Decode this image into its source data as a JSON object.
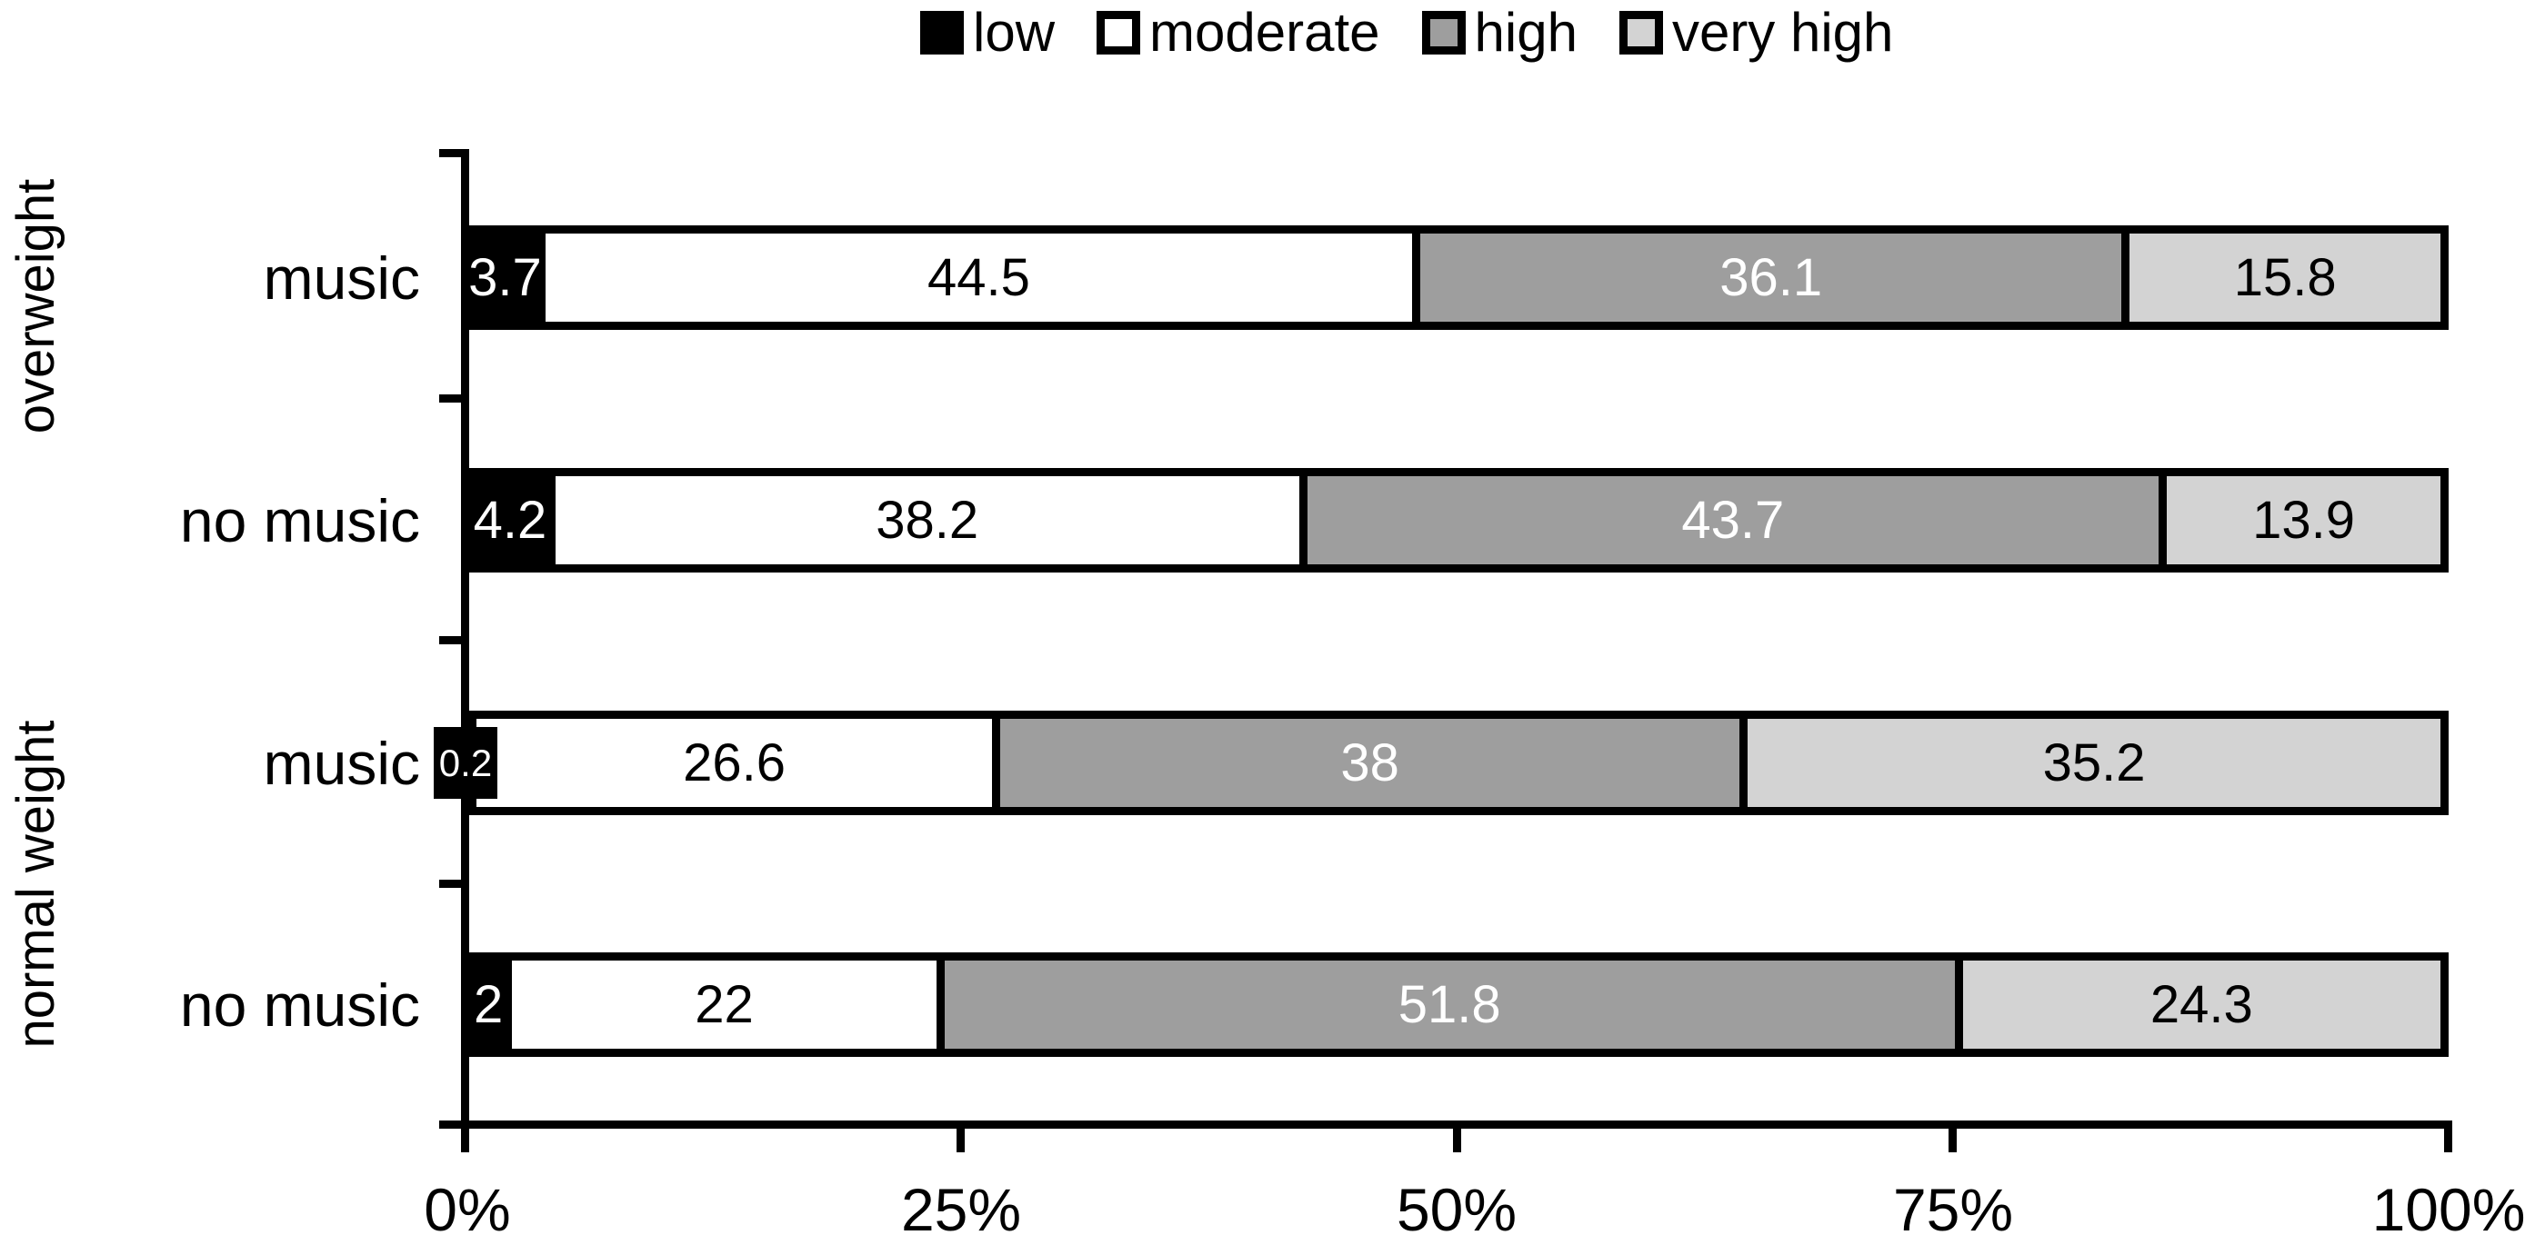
{
  "legend": {
    "items": [
      {
        "label": "low",
        "color": "#000000"
      },
      {
        "label": "moderate",
        "color": "#ffffff"
      },
      {
        "label": "high",
        "color": "#9e9e9e"
      },
      {
        "label": "very high",
        "color": "#d3d3d3"
      }
    ]
  },
  "chart_data": {
    "type": "bar",
    "orientation": "horizontal",
    "stacked": true,
    "title": "",
    "xlabel": "",
    "ylabel": "",
    "xlim": [
      0,
      100
    ],
    "grid": false,
    "legend_position": "top-center",
    "x_tick_labels": [
      "0%",
      "25%",
      "50%",
      "75%",
      "100%"
    ],
    "group_labels": [
      "overweight",
      "normal weight"
    ],
    "row_labels": [
      "music",
      "no music",
      "music",
      "no music"
    ],
    "categories": [
      "overweight / music",
      "overweight / no music",
      "normal weight / music",
      "normal weight / no music"
    ],
    "series": [
      {
        "name": "low",
        "color": "#000000",
        "text_color": "#ffffff",
        "values": [
          3.7,
          4.2,
          0.2,
          2
        ]
      },
      {
        "name": "moderate",
        "color": "#ffffff",
        "text_color": "#000000",
        "values": [
          44.5,
          38.2,
          26.6,
          22
        ]
      },
      {
        "name": "high",
        "color": "#9e9e9e",
        "text_color": "#ffffff",
        "values": [
          36.1,
          43.7,
          38,
          51.8
        ]
      },
      {
        "name": "very high",
        "color": "#d3d3d3",
        "text_color": "#000000",
        "values": [
          15.8,
          13.9,
          35.2,
          24.3
        ]
      }
    ],
    "value_labels": [
      [
        "3.7",
        "44.5",
        "36.1",
        "15.8"
      ],
      [
        "4.2",
        "38.2",
        "43.7",
        "13.9"
      ],
      [
        "0.2",
        "26.6",
        "38",
        "35.2"
      ],
      [
        "2",
        "22",
        "51.8",
        "24.3"
      ]
    ]
  }
}
